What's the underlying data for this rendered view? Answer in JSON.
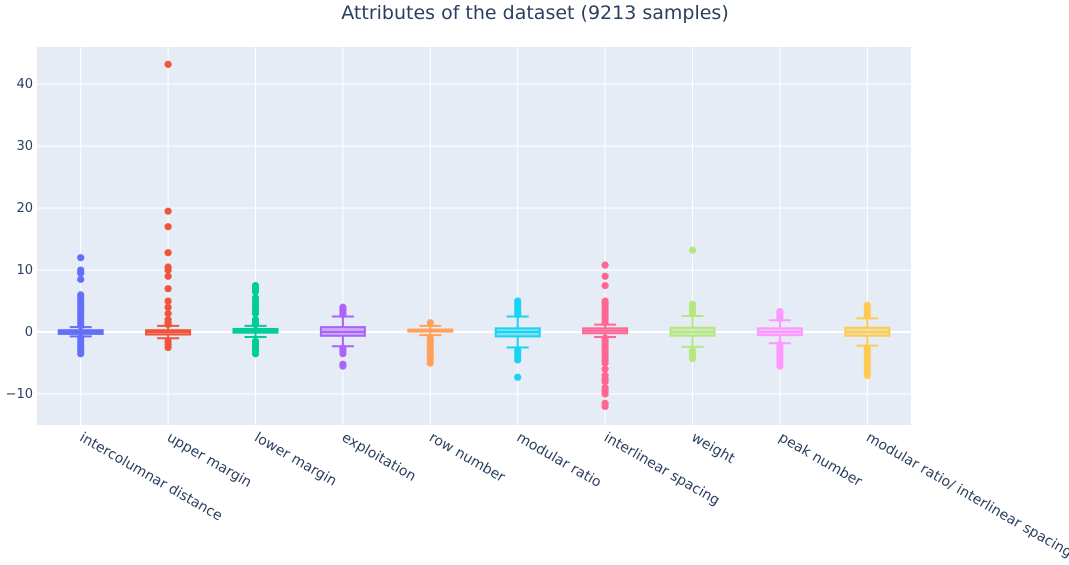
{
  "chart_data": {
    "type": "box",
    "title": "Attributes of the dataset (9213 samples)",
    "xlabel": "",
    "ylabel": "",
    "ylim": [
      -15,
      46
    ],
    "yticks": [
      -10,
      0,
      10,
      20,
      30,
      40
    ],
    "ytick_labels": [
      "−10",
      "0",
      "10",
      "20",
      "30",
      "40"
    ],
    "grid": true,
    "legend": "none",
    "categories": [
      "intercolumnar distance",
      "upper margin",
      "lower margin",
      "exploitation",
      "row number",
      "modular ratio",
      "interlinear spacing",
      "weight",
      "peak number",
      "modular ratio/ interlinear spacing"
    ],
    "series": [
      {
        "category": "intercolumnar distance",
        "color": "#636efa",
        "q1": -0.3,
        "median": 0.0,
        "q3": 0.3,
        "whisker_low": -0.7,
        "whisker_high": 0.8,
        "outliers": [
          -3.5,
          -3.0,
          -2.5,
          -2.0,
          -1.5,
          -1.0,
          1.0,
          1.5,
          2.0,
          2.5,
          3.0,
          3.5,
          4.0,
          4.5,
          5.0,
          5.5,
          6.0,
          8.5,
          9.5,
          10.0,
          12.0
        ]
      },
      {
        "category": "upper margin",
        "color": "#EF553B",
        "q1": -0.4,
        "median": 0.0,
        "q3": 0.3,
        "whisker_low": -1.0,
        "whisker_high": 1.0,
        "outliers": [
          -2.5,
          -2.0,
          -1.5,
          1.2,
          1.5,
          2.0,
          3.0,
          4.0,
          5.0,
          7.0,
          9.0,
          10.0,
          10.5,
          12.8,
          17.0,
          19.5,
          43.2
        ]
      },
      {
        "category": "lower margin",
        "color": "#00cc96",
        "q1": -0.1,
        "median": 0.2,
        "q3": 0.5,
        "whisker_low": -0.8,
        "whisker_high": 1.0,
        "outliers": [
          -3.5,
          -3.0,
          -2.5,
          -2.0,
          -1.5,
          1.2,
          1.5,
          2.0,
          3.0,
          3.5,
          4.0,
          4.5,
          5.0,
          5.5,
          6.5,
          7.0,
          7.5
        ]
      },
      {
        "category": "exploitation",
        "color": "#ab63fa",
        "q1": -0.6,
        "median": 0.0,
        "q3": 0.8,
        "whisker_low": -2.3,
        "whisker_high": 2.5,
        "outliers": [
          -5.5,
          -5.2,
          -3.5,
          -3.0,
          -2.6,
          2.8,
          3.2,
          3.6,
          4.0
        ]
      },
      {
        "category": "row number",
        "color": "#FFA15A",
        "q1": 0.1,
        "median": 0.3,
        "q3": 0.4,
        "whisker_low": -0.5,
        "whisker_high": 1.0,
        "outliers": [
          -5.0,
          -4.5,
          -4.0,
          -3.5,
          -3.0,
          -2.5,
          -2.0,
          -1.5,
          -1.0,
          1.5
        ]
      },
      {
        "category": "modular ratio",
        "color": "#19d3f3",
        "q1": -0.7,
        "median": 0.0,
        "q3": 0.6,
        "whisker_low": -2.5,
        "whisker_high": 2.5,
        "outliers": [
          -7.3,
          -4.5,
          -4.0,
          -3.5,
          -3.0,
          2.8,
          3.2,
          3.6,
          4.0,
          4.5,
          5.0
        ]
      },
      {
        "category": "interlinear spacing",
        "color": "#FF6692",
        "q1": -0.2,
        "median": 0.2,
        "q3": 0.6,
        "whisker_low": -0.8,
        "whisker_high": 1.2,
        "outliers": [
          -12.0,
          -11.5,
          -10.0,
          -9.5,
          -9.0,
          -8.0,
          -7.5,
          -7.0,
          -6.0,
          -5.0,
          -4.5,
          -4.0,
          -3.5,
          -3.0,
          -2.5,
          -2.0,
          -1.5,
          -1.0,
          1.5,
          2.0,
          2.5,
          3.0,
          3.5,
          4.0,
          4.5,
          5.0,
          7.5,
          9.0,
          10.8
        ]
      },
      {
        "category": "weight",
        "color": "#B6E880",
        "q1": -0.6,
        "median": 0.0,
        "q3": 0.7,
        "whisker_low": -2.4,
        "whisker_high": 2.6,
        "outliers": [
          -4.3,
          -4.0,
          -3.5,
          -3.0,
          3.0,
          3.5,
          4.0,
          4.5,
          13.2
        ]
      },
      {
        "category": "peak number",
        "color": "#FF97FF",
        "q1": -0.5,
        "median": 0.0,
        "q3": 0.6,
        "whisker_low": -1.8,
        "whisker_high": 1.9,
        "outliers": [
          -5.5,
          -5.0,
          -4.5,
          -4.0,
          -3.5,
          -3.0,
          -2.5,
          -2.0,
          2.2,
          2.6,
          3.0,
          3.3
        ]
      },
      {
        "category": "modular ratio/ interlinear spacing",
        "color": "#FECB52",
        "q1": -0.6,
        "median": 0.0,
        "q3": 0.7,
        "whisker_low": -2.2,
        "whisker_high": 2.2,
        "outliers": [
          -7.0,
          -6.5,
          -6.0,
          -5.5,
          -5.0,
          -4.5,
          -4.0,
          -3.5,
          -3.0,
          -2.6,
          2.6,
          3.0,
          3.5,
          4.0,
          4.3
        ]
      }
    ]
  }
}
